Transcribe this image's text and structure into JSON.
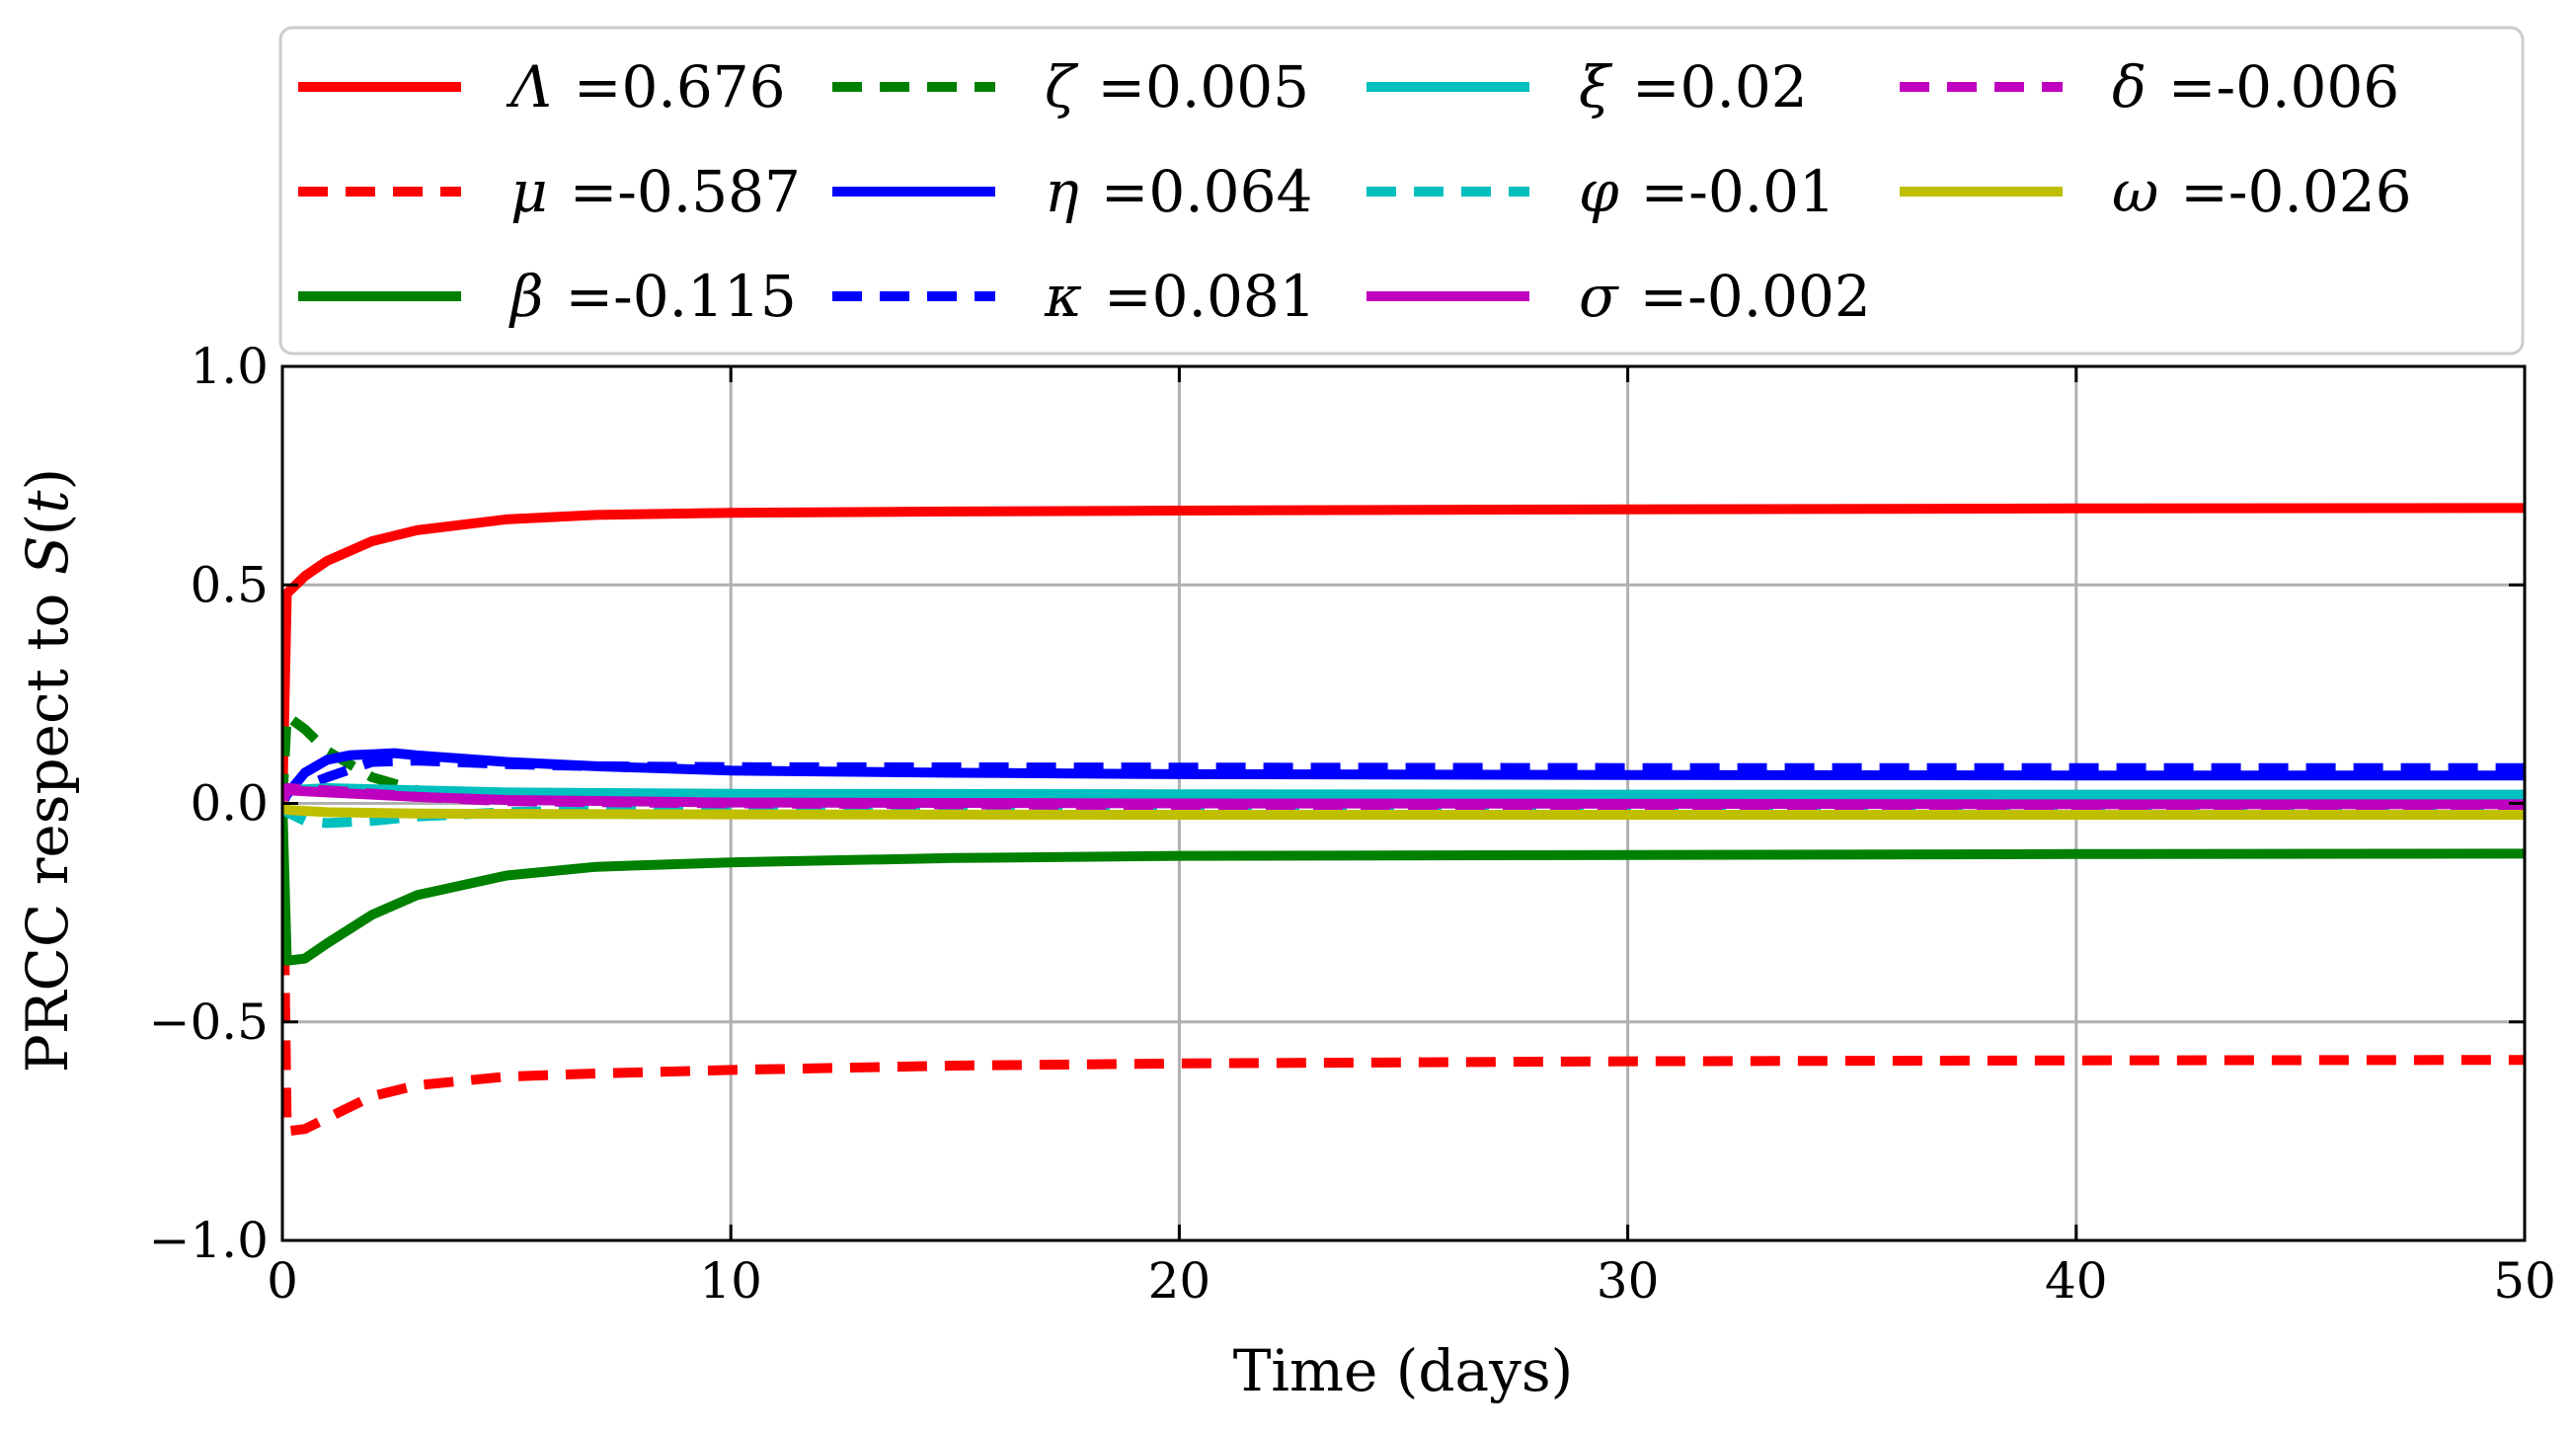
{
  "chart_data": {
    "type": "line",
    "title": "",
    "xlabel": "Time (days)",
    "ylabel": "PRCC respect to S(t)",
    "xlim": [
      0,
      50
    ],
    "ylim": [
      -1.0,
      1.0
    ],
    "xticks": [
      0,
      10,
      20,
      30,
      40,
      50
    ],
    "xtick_labels": [
      "0",
      "10",
      "20",
      "30",
      "40",
      "50"
    ],
    "yticks": [
      -1.0,
      -0.5,
      0.0,
      0.5,
      1.0
    ],
    "ytick_labels": [
      "−1.0",
      "−0.5",
      "0.0",
      "0.5",
      "1.0"
    ],
    "grid": true,
    "legend_position": "top, outside, 4 columns",
    "series": [
      {
        "name": "Λ",
        "label_value": "=0.676",
        "color": "#ff0000",
        "style": "solid",
        "x": [
          0,
          0.1,
          0.5,
          1,
          2,
          3,
          5,
          7,
          10,
          15,
          20,
          30,
          40,
          50
        ],
        "y": [
          0.0,
          0.48,
          0.52,
          0.555,
          0.6,
          0.625,
          0.65,
          0.66,
          0.665,
          0.668,
          0.67,
          0.673,
          0.675,
          0.676
        ]
      },
      {
        "name": "μ",
        "label_value": "=-0.587",
        "color": "#ff0000",
        "style": "dashed",
        "x": [
          0,
          0.1,
          0.5,
          1,
          2,
          3,
          5,
          7,
          10,
          15,
          20,
          30,
          40,
          50
        ],
        "y": [
          0.0,
          -0.75,
          -0.745,
          -0.72,
          -0.67,
          -0.645,
          -0.625,
          -0.618,
          -0.61,
          -0.6,
          -0.595,
          -0.59,
          -0.588,
          -0.587
        ]
      },
      {
        "name": "β",
        "label_value": "=-0.115",
        "color": "#008000",
        "style": "solid",
        "x": [
          0,
          0.1,
          0.5,
          1,
          2,
          3,
          5,
          7,
          10,
          15,
          20,
          30,
          40,
          50
        ],
        "y": [
          0.0,
          -0.36,
          -0.355,
          -0.32,
          -0.255,
          -0.21,
          -0.165,
          -0.145,
          -0.135,
          -0.125,
          -0.12,
          -0.118,
          -0.116,
          -0.115
        ]
      },
      {
        "name": "ζ",
        "label_value": "=0.005",
        "color": "#008000",
        "style": "dashed",
        "x": [
          0,
          0.1,
          0.5,
          1,
          2,
          3,
          5,
          7,
          10,
          20,
          30,
          40,
          50
        ],
        "y": [
          0.0,
          0.2,
          0.17,
          0.12,
          0.06,
          0.03,
          0.015,
          0.01,
          0.007,
          0.005,
          0.005,
          0.005,
          0.005
        ]
      },
      {
        "name": "η",
        "label_value": "=0.064",
        "color": "#0000ff",
        "style": "solid",
        "x": [
          0,
          0.1,
          0.5,
          1,
          1.5,
          2.5,
          3,
          5,
          7,
          10,
          15,
          20,
          30,
          40,
          50
        ],
        "y": [
          0.0,
          0.02,
          0.07,
          0.1,
          0.11,
          0.115,
          0.11,
          0.095,
          0.085,
          0.075,
          0.07,
          0.067,
          0.065,
          0.064,
          0.064
        ]
      },
      {
        "name": "κ",
        "label_value": "=0.081",
        "color": "#0000ff",
        "style": "dashed",
        "x": [
          0,
          0.1,
          0.5,
          1,
          2,
          3,
          5,
          7,
          10,
          20,
          30,
          40,
          50
        ],
        "y": [
          0.0,
          0.03,
          0.04,
          0.06,
          0.095,
          0.098,
          0.09,
          0.085,
          0.083,
          0.082,
          0.081,
          0.081,
          0.081
        ]
      },
      {
        "name": "ξ",
        "label_value": "=0.02",
        "color": "#00bfbf",
        "style": "solid",
        "x": [
          0,
          0.1,
          1,
          3,
          5,
          10,
          20,
          30,
          40,
          50
        ],
        "y": [
          0.0,
          0.03,
          0.035,
          0.03,
          0.025,
          0.022,
          0.021,
          0.02,
          0.02,
          0.02
        ]
      },
      {
        "name": "φ",
        "label_value": "=-0.01",
        "color": "#00bfbf",
        "style": "dashed",
        "x": [
          0,
          0.1,
          0.5,
          1,
          2,
          3,
          5,
          7,
          10,
          20,
          30,
          40,
          50
        ],
        "y": [
          0.0,
          -0.02,
          -0.04,
          -0.045,
          -0.04,
          -0.03,
          -0.02,
          -0.015,
          -0.012,
          -0.01,
          -0.01,
          -0.01,
          -0.01
        ]
      },
      {
        "name": "σ",
        "label_value": "=-0.002",
        "color": "#bf00bf",
        "style": "solid",
        "x": [
          0,
          0.1,
          1,
          3,
          5,
          10,
          20,
          30,
          40,
          50
        ],
        "y": [
          0.0,
          0.03,
          0.025,
          0.015,
          0.008,
          0.002,
          0.0,
          -0.001,
          -0.002,
          -0.002
        ]
      },
      {
        "name": "δ",
        "label_value": "=-0.006",
        "color": "#bf00bf",
        "style": "dashed",
        "x": [
          0,
          0.1,
          1,
          3,
          5,
          10,
          20,
          30,
          40,
          50
        ],
        "y": [
          0.0,
          0.035,
          0.03,
          0.015,
          0.005,
          0.0,
          -0.004,
          -0.005,
          -0.006,
          -0.006
        ]
      },
      {
        "name": "ω",
        "label_value": "=-0.026",
        "color": "#bfbf00",
        "style": "solid",
        "x": [
          0,
          0.1,
          1,
          3,
          5,
          10,
          20,
          30,
          40,
          50
        ],
        "y": [
          0.0,
          -0.015,
          -0.02,
          -0.023,
          -0.024,
          -0.025,
          -0.026,
          -0.026,
          -0.026,
          -0.026
        ]
      }
    ]
  }
}
